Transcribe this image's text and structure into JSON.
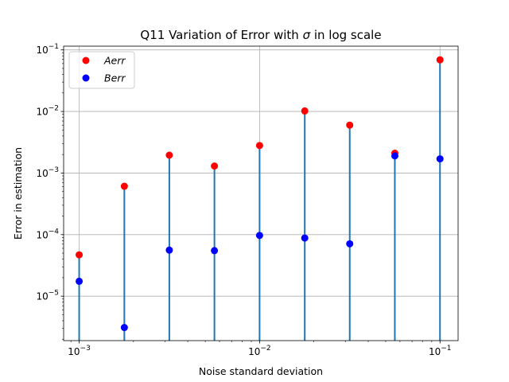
{
  "chart_data": {
    "type": "scatter",
    "title_prefix": "Q11 Variation of Error with ",
    "title_symbol": "σ",
    "title_suffix": " in log scale",
    "xlabel": "Noise standard deviation",
    "ylabel": "Error in estimation",
    "xscale": "log",
    "yscale": "log",
    "xlim": [
      0.00082,
      0.126
    ],
    "ylim": [
      1.9e-06,
      0.115
    ],
    "grid": true,
    "legend_position": "upper-left",
    "x_ticks": [
      {
        "value": 0.001,
        "base": "10",
        "exp": "−3"
      },
      {
        "value": 0.01,
        "base": "10",
        "exp": "−2"
      },
      {
        "value": 0.1,
        "base": "10",
        "exp": "−1"
      }
    ],
    "y_ticks": [
      {
        "value": 1e-05,
        "base": "10",
        "exp": "−5"
      },
      {
        "value": 0.0001,
        "base": "10",
        "exp": "−4"
      },
      {
        "value": 0.001,
        "base": "10",
        "exp": "−3"
      },
      {
        "value": 0.01,
        "base": "10",
        "exp": "−2"
      },
      {
        "value": 0.1,
        "base": "10",
        "exp": "−1"
      }
    ],
    "x": [
      0.001,
      0.00178,
      0.00316,
      0.00562,
      0.01,
      0.0178,
      0.0316,
      0.0562,
      0.1
    ],
    "series": [
      {
        "name": "Aerr",
        "color": "#ff0000",
        "values": [
          4.7e-05,
          0.00061,
          0.00195,
          0.0013,
          0.0028,
          0.0102,
          0.006,
          0.0021,
          0.069
        ]
      },
      {
        "name": "Berr",
        "color": "#0000ff",
        "values": [
          1.75e-05,
          3.1e-06,
          5.6e-05,
          5.5e-05,
          9.7e-05,
          8.8e-05,
          7.1e-05,
          0.0019,
          0.0017
        ]
      }
    ],
    "stem_color": "#1f77b4"
  }
}
